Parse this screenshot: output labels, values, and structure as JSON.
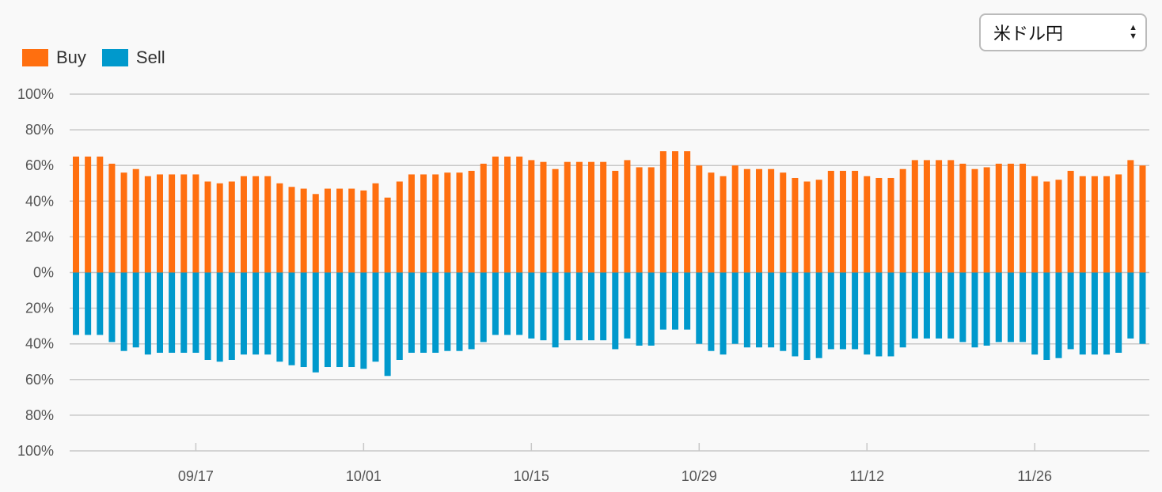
{
  "currency_select": {
    "value": "米ドル円"
  },
  "colors": {
    "buy": "#ff6f0f",
    "sell": "#0099cc",
    "grid": "#c8c8c8"
  },
  "chart_data": {
    "type": "bar",
    "stacked": "diverging",
    "legend": {
      "placement": "top-left",
      "entries": [
        "Buy",
        "Sell"
      ]
    },
    "y_tick_labels": [
      "100%",
      "80%",
      "60%",
      "40%",
      "20%",
      "0%",
      "20%",
      "40%",
      "60%",
      "80%",
      "100%"
    ],
    "ylim": [
      -100,
      100
    ],
    "grid": true,
    "x_tick_labels": [
      "09/17",
      "10/01",
      "10/15",
      "10/29",
      "11/12",
      "11/26"
    ],
    "series": [
      {
        "name": "Buy",
        "values": [
          65,
          65,
          65,
          61,
          56,
          58,
          54,
          55,
          55,
          55,
          55,
          51,
          50,
          51,
          54,
          54,
          54,
          50,
          48,
          47,
          44,
          47,
          47,
          47,
          46,
          50,
          42,
          51,
          55,
          55,
          55,
          56,
          56,
          57,
          61,
          65,
          65,
          65,
          63,
          62,
          58,
          62,
          62,
          62,
          62,
          57,
          63,
          59,
          59,
          68,
          68,
          68,
          60,
          56,
          54,
          60,
          58,
          58,
          58,
          56,
          53,
          51,
          52,
          57,
          57,
          57,
          54,
          53,
          53,
          58,
          63,
          63,
          63,
          63,
          61,
          58,
          59,
          61,
          61,
          61,
          54,
          51,
          52,
          57,
          54,
          54,
          54,
          55,
          63,
          60
        ]
      },
      {
        "name": "Sell",
        "values": [
          35,
          35,
          35,
          39,
          44,
          42,
          46,
          45,
          45,
          45,
          45,
          49,
          50,
          49,
          46,
          46,
          46,
          50,
          52,
          53,
          56,
          53,
          53,
          53,
          54,
          50,
          58,
          49,
          45,
          45,
          45,
          44,
          44,
          43,
          39,
          35,
          35,
          35,
          37,
          38,
          42,
          38,
          38,
          38,
          38,
          43,
          37,
          41,
          41,
          32,
          32,
          32,
          40,
          44,
          46,
          40,
          42,
          42,
          42,
          44,
          47,
          49,
          48,
          43,
          43,
          43,
          46,
          47,
          47,
          42,
          37,
          37,
          37,
          37,
          39,
          42,
          41,
          39,
          39,
          39,
          46,
          49,
          48,
          43,
          46,
          46,
          46,
          45,
          37,
          40
        ]
      }
    ]
  }
}
